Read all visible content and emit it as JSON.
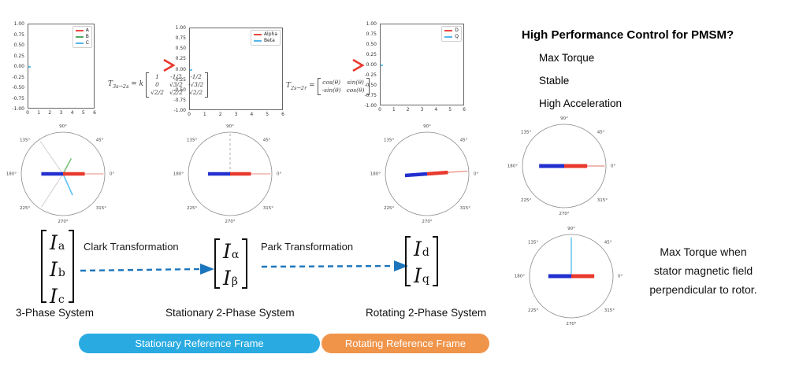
{
  "colors": {
    "pill_blue": "#29ABE2",
    "pill_orange": "#F0944A",
    "arrow_blue": "#1B75BC",
    "vector_red": "#E8392E",
    "vector_blue": "#2330CF",
    "gradient_start": "#2BB2E8",
    "gradient_end": "#E8392E"
  },
  "top_plots": [
    {
      "legend": [
        {
          "label": "A",
          "color": "#E8493E"
        },
        {
          "label": "B",
          "color": "#55A868"
        },
        {
          "label": "C",
          "color": "#56B4E9"
        }
      ],
      "y_ticks": [
        "1.00",
        "0.75",
        "0.50",
        "0.25",
        "0.00",
        "-0.25",
        "-0.50",
        "-0.75",
        "-1.00"
      ],
      "x_ticks": [
        "0",
        "1",
        "2",
        "3",
        "4",
        "5",
        "6"
      ]
    },
    {
      "legend": [
        {
          "label": "Alpha",
          "color": "#E8493E"
        },
        {
          "label": "Beta",
          "color": "#56B4E9"
        }
      ],
      "y_ticks": [
        "1.00",
        "0.75",
        "0.50",
        "0.25",
        "0.00",
        "-0.25",
        "-0.50",
        "-0.75",
        "-1.00"
      ],
      "x_ticks": [
        "0",
        "1",
        "2",
        "3",
        "4",
        "5",
        "6"
      ]
    },
    {
      "legend": [
        {
          "label": "D",
          "color": "#E8493E"
        },
        {
          "label": "Q",
          "color": "#56B4E9"
        }
      ],
      "y_ticks": [
        "1.00",
        "0.75",
        "0.50",
        "0.25",
        "0.00",
        "-0.25",
        "-0.50",
        "-0.75",
        "-1.00"
      ],
      "x_ticks": [
        "0",
        "1",
        "2",
        "3",
        "4",
        "5",
        "6"
      ]
    }
  ],
  "matrices": [
    {
      "base": "T",
      "sub": "3s→2s",
      "eq": "= k",
      "rows": [
        [
          "1",
          "-1/2",
          "-1/2"
        ],
        [
          "0",
          "√3/2",
          "-√3/2"
        ],
        [
          "√2/2",
          "√2/2",
          "√2/2"
        ]
      ]
    },
    {
      "base": "T",
      "sub": "2s→2r",
      "eq": "=",
      "rows": [
        [
          "cos(θ)",
          "sin(θ)"
        ],
        [
          "-sin(θ)",
          "cos(θ)"
        ]
      ]
    }
  ],
  "polar_angle_labels": [
    "0°",
    "45°",
    "90°",
    "135°",
    "180°",
    "225°",
    "270°",
    "315°"
  ],
  "polar_plots": [
    {
      "name": "three-phase-vectors",
      "vectors": [
        {
          "n": "b-axis-gray",
          "a": 125,
          "r": 0.95,
          "c": "#CFCFCF",
          "w": 1
        },
        {
          "n": "c-axis-gray",
          "a": 237,
          "r": 0.95,
          "c": "#CFCFCF",
          "w": 1
        },
        {
          "n": "phase-b-green",
          "a": 62,
          "r": 0.42,
          "c": "#79C37D",
          "w": 1.6
        },
        {
          "n": "phase-c-cyan",
          "a": 294,
          "r": 0.56,
          "c": "#5FC4F2",
          "w": 1.6
        },
        {
          "n": "resultant-thin-red",
          "a": 0,
          "r": 0.97,
          "c": "#F0A49B",
          "w": 1.2
        },
        {
          "n": "stator-vector-red",
          "a": 0,
          "r": 0.52,
          "c": "#E8392E",
          "w": 4.5
        },
        {
          "n": "rotor-vector-blue",
          "a": 180,
          "r": 0.52,
          "c": "#2330CF",
          "w": 4.5
        }
      ]
    },
    {
      "name": "alpha-beta-vectors",
      "vectors": [
        {
          "n": "beta-axis-dashed",
          "a": 90,
          "r": 0.97,
          "c": "#9A9A9A",
          "w": 0.8,
          "dash": true
        },
        {
          "n": "resultant-thin-red",
          "a": 0,
          "r": 0.97,
          "c": "#F0A49B",
          "w": 1.2
        },
        {
          "n": "stator-vector-red",
          "a": 0,
          "r": 0.5,
          "c": "#E8392E",
          "w": 4.5
        },
        {
          "n": "rotor-vector-blue",
          "a": 180,
          "r": 0.53,
          "c": "#2330CF",
          "w": 4.5
        }
      ]
    },
    {
      "name": "dq-vectors",
      "vectors": [
        {
          "n": "resultant-thin-red",
          "a": 4,
          "r": 0.97,
          "c": "#E98175",
          "w": 1.2
        },
        {
          "n": "stator-vector-red",
          "a": 4,
          "r": 0.5,
          "c": "#E8392E",
          "w": 4.5
        },
        {
          "n": "rotor-vector-blue",
          "a": 184,
          "r": 0.53,
          "c": "#2330CF",
          "w": 4.5
        }
      ]
    },
    {
      "name": "aligned-field-vectors",
      "vectors": [
        {
          "n": "resultant-thin-red",
          "a": 0,
          "r": 0.97,
          "c": "#E8A39A",
          "w": 1.4
        },
        {
          "n": "stator-vector-red",
          "a": 0,
          "r": 0.55,
          "c": "#E8392E",
          "w": 5
        },
        {
          "n": "rotor-vector-blue",
          "a": 180,
          "r": 0.6,
          "c": "#2330CF",
          "w": 5
        }
      ]
    },
    {
      "name": "perpendicular-field-vectors",
      "vectors": [
        {
          "n": "q-axis-cyan",
          "a": 90,
          "r": 0.93,
          "c": "#56C0F0",
          "w": 1.4
        },
        {
          "n": "stator-vector-red",
          "a": 0,
          "r": 0.55,
          "c": "#E8392E",
          "w": 5
        },
        {
          "n": "rotor-vector-blue",
          "a": 180,
          "r": 0.55,
          "c": "#2330CF",
          "w": 5
        }
      ]
    }
  ],
  "right_panel": {
    "title": "High Performance Control for PMSM?",
    "items": [
      "Max Torque",
      "Stable",
      "High Acceleration"
    ],
    "note_lines": [
      "Max Torque when",
      "stator magnetic field",
      "perpendicular to rotor."
    ]
  },
  "bottom": {
    "clark_label": "Clark Transformation",
    "park_label": "Park Transformation",
    "vec_abc": [
      {
        "m": "I",
        "s": "a"
      },
      {
        "m": "I",
        "s": "b"
      },
      {
        "m": "I",
        "s": "c"
      }
    ],
    "vec_ab": [
      {
        "m": "I",
        "s": "α"
      },
      {
        "m": "I",
        "s": "β"
      }
    ],
    "vec_dq": [
      {
        "m": "I",
        "s": "d"
      },
      {
        "m": "I",
        "s": "q"
      }
    ],
    "system_labels": [
      "3-Phase System",
      "Stationary 2-Phase System",
      "Rotating 2-Phase System"
    ],
    "pills": [
      {
        "label": "Stationary Reference Frame",
        "color": "#29ABE2"
      },
      {
        "label": "Rotating Reference Frame",
        "color": "#F0944A"
      }
    ]
  }
}
